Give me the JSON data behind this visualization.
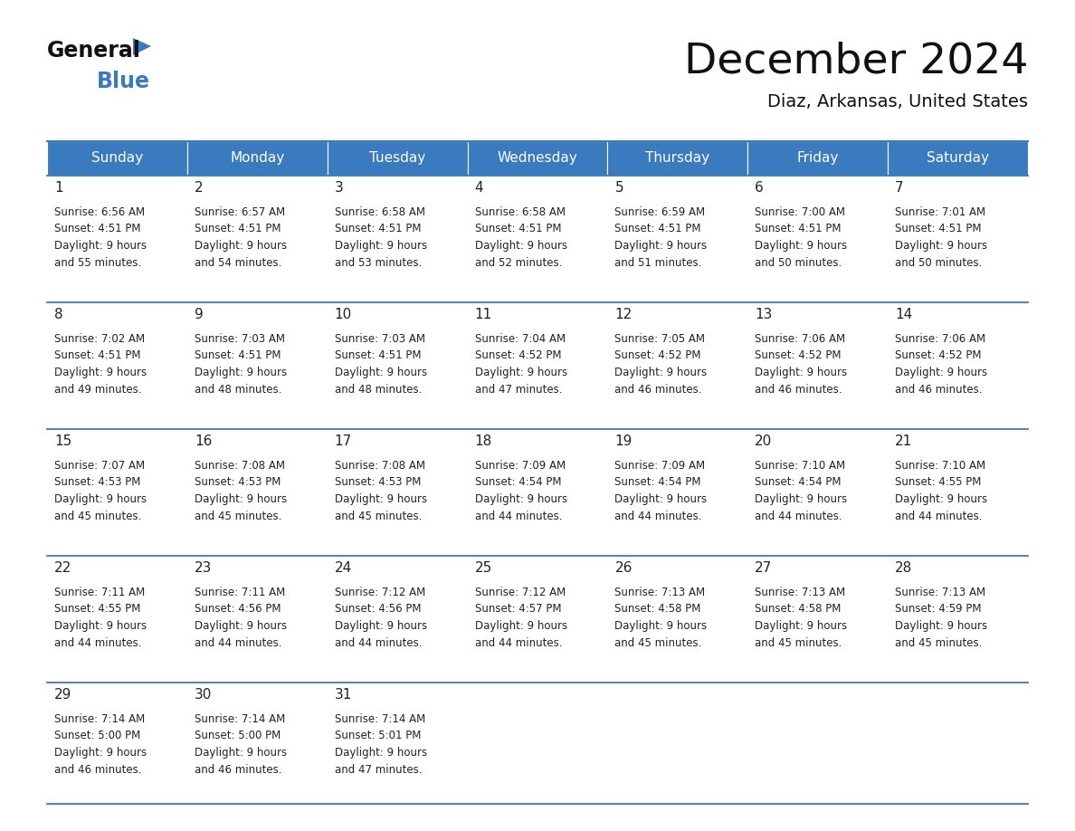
{
  "title": "December 2024",
  "subtitle": "Diaz, Arkansas, United States",
  "header_color": "#3a7abf",
  "header_text_color": "#ffffff",
  "cell_bg_color": "#ffffff",
  "border_color": "#3a7abf",
  "text_color": "#222222",
  "days_of_week": [
    "Sunday",
    "Monday",
    "Tuesday",
    "Wednesday",
    "Thursday",
    "Friday",
    "Saturday"
  ],
  "logo_general_color": "#111111",
  "logo_blue_color": "#3a7abf",
  "title_fontsize": 34,
  "subtitle_fontsize": 14,
  "header_fontsize": 11,
  "day_num_fontsize": 11,
  "cell_text_fontsize": 8.5,
  "weeks": [
    [
      {
        "day": 1,
        "sunrise": "6:56 AM",
        "sunset": "4:51 PM",
        "daylight_hours": 9,
        "daylight_minutes": 55
      },
      {
        "day": 2,
        "sunrise": "6:57 AM",
        "sunset": "4:51 PM",
        "daylight_hours": 9,
        "daylight_minutes": 54
      },
      {
        "day": 3,
        "sunrise": "6:58 AM",
        "sunset": "4:51 PM",
        "daylight_hours": 9,
        "daylight_minutes": 53
      },
      {
        "day": 4,
        "sunrise": "6:58 AM",
        "sunset": "4:51 PM",
        "daylight_hours": 9,
        "daylight_minutes": 52
      },
      {
        "day": 5,
        "sunrise": "6:59 AM",
        "sunset": "4:51 PM",
        "daylight_hours": 9,
        "daylight_minutes": 51
      },
      {
        "day": 6,
        "sunrise": "7:00 AM",
        "sunset": "4:51 PM",
        "daylight_hours": 9,
        "daylight_minutes": 50
      },
      {
        "day": 7,
        "sunrise": "7:01 AM",
        "sunset": "4:51 PM",
        "daylight_hours": 9,
        "daylight_minutes": 50
      }
    ],
    [
      {
        "day": 8,
        "sunrise": "7:02 AM",
        "sunset": "4:51 PM",
        "daylight_hours": 9,
        "daylight_minutes": 49
      },
      {
        "day": 9,
        "sunrise": "7:03 AM",
        "sunset": "4:51 PM",
        "daylight_hours": 9,
        "daylight_minutes": 48
      },
      {
        "day": 10,
        "sunrise": "7:03 AM",
        "sunset": "4:51 PM",
        "daylight_hours": 9,
        "daylight_minutes": 48
      },
      {
        "day": 11,
        "sunrise": "7:04 AM",
        "sunset": "4:52 PM",
        "daylight_hours": 9,
        "daylight_minutes": 47
      },
      {
        "day": 12,
        "sunrise": "7:05 AM",
        "sunset": "4:52 PM",
        "daylight_hours": 9,
        "daylight_minutes": 46
      },
      {
        "day": 13,
        "sunrise": "7:06 AM",
        "sunset": "4:52 PM",
        "daylight_hours": 9,
        "daylight_minutes": 46
      },
      {
        "day": 14,
        "sunrise": "7:06 AM",
        "sunset": "4:52 PM",
        "daylight_hours": 9,
        "daylight_minutes": 46
      }
    ],
    [
      {
        "day": 15,
        "sunrise": "7:07 AM",
        "sunset": "4:53 PM",
        "daylight_hours": 9,
        "daylight_minutes": 45
      },
      {
        "day": 16,
        "sunrise": "7:08 AM",
        "sunset": "4:53 PM",
        "daylight_hours": 9,
        "daylight_minutes": 45
      },
      {
        "day": 17,
        "sunrise": "7:08 AM",
        "sunset": "4:53 PM",
        "daylight_hours": 9,
        "daylight_minutes": 45
      },
      {
        "day": 18,
        "sunrise": "7:09 AM",
        "sunset": "4:54 PM",
        "daylight_hours": 9,
        "daylight_minutes": 44
      },
      {
        "day": 19,
        "sunrise": "7:09 AM",
        "sunset": "4:54 PM",
        "daylight_hours": 9,
        "daylight_minutes": 44
      },
      {
        "day": 20,
        "sunrise": "7:10 AM",
        "sunset": "4:54 PM",
        "daylight_hours": 9,
        "daylight_minutes": 44
      },
      {
        "day": 21,
        "sunrise": "7:10 AM",
        "sunset": "4:55 PM",
        "daylight_hours": 9,
        "daylight_minutes": 44
      }
    ],
    [
      {
        "day": 22,
        "sunrise": "7:11 AM",
        "sunset": "4:55 PM",
        "daylight_hours": 9,
        "daylight_minutes": 44
      },
      {
        "day": 23,
        "sunrise": "7:11 AM",
        "sunset": "4:56 PM",
        "daylight_hours": 9,
        "daylight_minutes": 44
      },
      {
        "day": 24,
        "sunrise": "7:12 AM",
        "sunset": "4:56 PM",
        "daylight_hours": 9,
        "daylight_minutes": 44
      },
      {
        "day": 25,
        "sunrise": "7:12 AM",
        "sunset": "4:57 PM",
        "daylight_hours": 9,
        "daylight_minutes": 44
      },
      {
        "day": 26,
        "sunrise": "7:13 AM",
        "sunset": "4:58 PM",
        "daylight_hours": 9,
        "daylight_minutes": 45
      },
      {
        "day": 27,
        "sunrise": "7:13 AM",
        "sunset": "4:58 PM",
        "daylight_hours": 9,
        "daylight_minutes": 45
      },
      {
        "day": 28,
        "sunrise": "7:13 AM",
        "sunset": "4:59 PM",
        "daylight_hours": 9,
        "daylight_minutes": 45
      }
    ],
    [
      {
        "day": 29,
        "sunrise": "7:14 AM",
        "sunset": "5:00 PM",
        "daylight_hours": 9,
        "daylight_minutes": 46
      },
      {
        "day": 30,
        "sunrise": "7:14 AM",
        "sunset": "5:00 PM",
        "daylight_hours": 9,
        "daylight_minutes": 46
      },
      {
        "day": 31,
        "sunrise": "7:14 AM",
        "sunset": "5:01 PM",
        "daylight_hours": 9,
        "daylight_minutes": 47
      },
      null,
      null,
      null,
      null
    ]
  ]
}
